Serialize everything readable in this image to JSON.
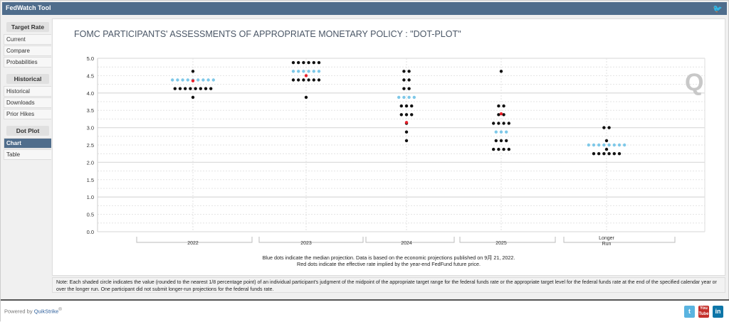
{
  "header": {
    "title": "FedWatch Tool",
    "twitter_icon": "twitter-icon"
  },
  "sidebar": {
    "groups": [
      {
        "heading": "Target Rate",
        "items": [
          "Current",
          "Compare",
          "Probabilities"
        ]
      },
      {
        "heading": "Historical",
        "items": [
          "Historical",
          "Downloads",
          "Prior Hikes"
        ]
      },
      {
        "heading": "Dot Plot",
        "items": [
          "Chart",
          "Table"
        ]
      }
    ],
    "active": "Chart"
  },
  "footer": {
    "powered_by": "Powered by",
    "brand": "QuikStrike",
    "reg": "®"
  },
  "note": "Note: Each shaded circle indicates the value (rounded to the nearest 1/8 percentage point) of an individual participant's judgment of the midpoint of the appropriate target range for the federal funds rate or the appropriate target level for the federal funds rate at the end of the specified calendar year or over the longer run. One participant did not submit longer-run projections for the federal funds rate.",
  "caption": {
    "line1": "Blue dots indicate the median projection. Data is based on the economic projections published on 9月 21, 2022.",
    "line2": "Red dots indicate the effective rate implied by the year-end FedFund future price."
  },
  "colors": {
    "median": "#7ec8e8",
    "dot": "#111111",
    "red": "#e8202a",
    "header": "#4f6d8c"
  },
  "chart_data": {
    "type": "scatter",
    "title": "FOMC PARTICIPANTS' ASSESSMENTS OF APPROPRIATE MONETARY POLICY : \"DOT-PLOT\"",
    "ylim": [
      0,
      5
    ],
    "yticks": [
      "0.0",
      "0.5",
      "1.0",
      "1.5",
      "2.0",
      "2.5",
      "3.0",
      "3.5",
      "4.0",
      "4.5",
      "5.0"
    ],
    "categories": [
      "2022",
      "2023",
      "2024",
      "2025",
      "Longer Run"
    ],
    "dots": [
      {
        "category": "2022",
        "levels": [
          [
            4.625,
            1
          ],
          [
            4.375,
            9
          ],
          [
            4.125,
            8
          ],
          [
            3.875,
            1
          ]
        ],
        "median": 4.375,
        "red": 4.35
      },
      {
        "category": "2023",
        "levels": [
          [
            4.875,
            6
          ],
          [
            4.625,
            6
          ],
          [
            4.375,
            6
          ],
          [
            3.875,
            1
          ]
        ],
        "median": 4.625,
        "red": 4.5
      },
      {
        "category": "2024",
        "levels": [
          [
            4.625,
            2
          ],
          [
            4.375,
            2
          ],
          [
            4.125,
            2
          ],
          [
            3.875,
            4
          ],
          [
            3.625,
            3
          ],
          [
            3.375,
            3
          ],
          [
            3.125,
            1
          ],
          [
            2.875,
            1
          ],
          [
            2.625,
            1
          ]
        ],
        "median": 3.875,
        "red": 3.15
      },
      {
        "category": "2025",
        "levels": [
          [
            4.625,
            1
          ],
          [
            3.625,
            2
          ],
          [
            3.375,
            2
          ],
          [
            3.125,
            4
          ],
          [
            2.875,
            3
          ],
          [
            2.625,
            3
          ],
          [
            2.375,
            4
          ]
        ],
        "median": 2.875,
        "red": 3.4
      },
      {
        "category": "Longer Run",
        "levels": [
          [
            3.0,
            2
          ],
          [
            2.625,
            1
          ],
          [
            2.5,
            8
          ],
          [
            2.375,
            1
          ],
          [
            2.25,
            6
          ]
        ],
        "median": 2.5,
        "red": null
      }
    ]
  }
}
